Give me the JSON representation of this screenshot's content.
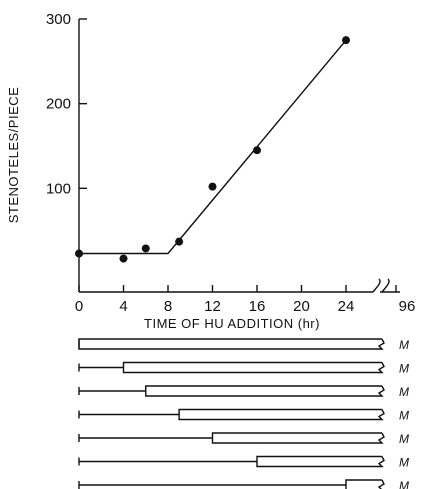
{
  "chart_data": {
    "type": "scatter",
    "xlabel": "TIME OF HU ADDITION (hr)",
    "ylabel": "STENOTELES/PIECE",
    "xlim": [
      0,
      24
    ],
    "ylim": [
      0,
      300
    ],
    "x_ticks": [
      0,
      4,
      8,
      12,
      16,
      20,
      24
    ],
    "x_tick_labels": [
      "0",
      "4",
      "8",
      "12",
      "16",
      "20",
      "24"
    ],
    "x_break_label": "96",
    "y_ticks": [
      100,
      200,
      300
    ],
    "y_tick_labels": [
      "100",
      "200",
      "300"
    ],
    "grid": false,
    "points": [
      {
        "x": 0,
        "y": 23
      },
      {
        "x": 4,
        "y": 17
      },
      {
        "x": 6,
        "y": 29
      },
      {
        "x": 9,
        "y": 37
      },
      {
        "x": 12,
        "y": 102
      },
      {
        "x": 16,
        "y": 145
      },
      {
        "x": 24,
        "y": 275
      }
    ],
    "fit_line": [
      {
        "x": 0,
        "y": 23
      },
      {
        "x": 8,
        "y": 23
      },
      {
        "x": 24,
        "y": 275
      }
    ],
    "schedule": {
      "start_times": [
        0,
        4,
        6,
        9,
        12,
        16,
        24
      ],
      "end_label": "M"
    }
  }
}
